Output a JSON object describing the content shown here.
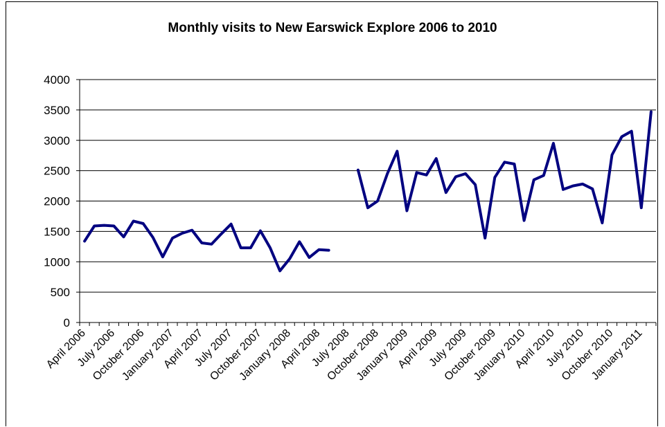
{
  "chart_data": {
    "type": "line",
    "title": "Monthly visits to New Earswick Explore 2006 to 2010",
    "xlabel": "",
    "ylabel": "",
    "ylim": [
      0,
      4000
    ],
    "yticks": [
      0,
      500,
      1000,
      1500,
      2000,
      2500,
      3000,
      3500,
      4000
    ],
    "grid": true,
    "legend": "none",
    "line_color": "#000080",
    "categories": [
      "April 2006",
      "May 2006",
      "June 2006",
      "July 2006",
      "August 2006",
      "September 2006",
      "October 2006",
      "November 2006",
      "December 2006",
      "January 2007",
      "February 2007",
      "March 2007",
      "April 2007",
      "May 2007",
      "June 2007",
      "July 2007",
      "August 2007",
      "September 2007",
      "October 2007",
      "November 2007",
      "December 2007",
      "January 2008",
      "February 2008",
      "March 2008",
      "April 2008",
      "May 2008",
      "June 2008",
      "July 2008",
      "August 2008",
      "September 2008",
      "October 2008",
      "November 2008",
      "December 2008",
      "January 2009",
      "February 2009",
      "March 2009",
      "April 2009",
      "May 2009",
      "June 2009",
      "July 2009",
      "August 2009",
      "September 2009",
      "October 2009",
      "November 2009",
      "December 2009",
      "January 2010",
      "February 2010",
      "March 2010",
      "April 2010",
      "May 2010",
      "June 2010",
      "July 2010",
      "August 2010",
      "September 2010",
      "October 2010",
      "November 2010",
      "December 2010",
      "January 2011",
      "February 2011"
    ],
    "tick_labels": [
      "April 2006",
      "July 2006",
      "October 2006",
      "January 2007",
      "April 2007",
      "July 2007",
      "October 2007",
      "January 2008",
      "April 2008",
      "July 2008",
      "October 2008",
      "January 2009",
      "April 2009",
      "July 2009",
      "October 2009",
      "January 2010",
      "April 2010",
      "July 2010",
      "October 2010",
      "January 2011"
    ],
    "series": [
      {
        "values": [
          1340,
          1590,
          1600,
          1590,
          1410,
          1670,
          1630,
          1400,
          1080,
          1390,
          1470,
          1520,
          1310,
          1290,
          1460,
          1620,
          1230,
          1230,
          1510,
          1230,
          850,
          1050,
          1330,
          1070,
          1200,
          1190,
          null,
          null,
          2510,
          1890,
          2000,
          2450,
          2820,
          1840,
          2470,
          2430,
          2700,
          2140,
          2400,
          2450,
          2270,
          1390,
          2390,
          2640,
          2610,
          1680,
          2350,
          2420,
          2950,
          2190,
          2250,
          2280,
          2200,
          1640,
          2760,
          3060,
          3150,
          1890,
          3470
        ]
      }
    ]
  }
}
